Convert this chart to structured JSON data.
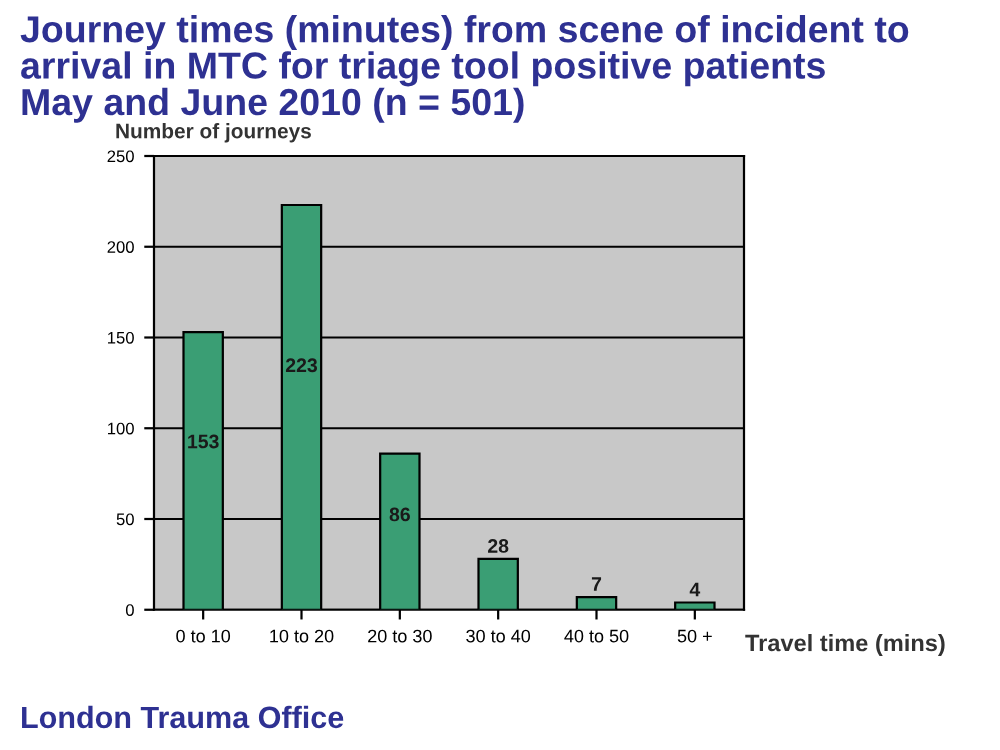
{
  "chart_data": {
    "type": "bar",
    "title": "Journey times (minutes) from scene of incident to\narrival in MTC for triage tool positive patients\nMay and June 2010 (n = 501)",
    "ylabel": "Number of journeys",
    "xlabel": "Travel time (mins)",
    "categories": [
      "0 to 10",
      "10 to 20",
      "20 to 30",
      "30 to 40",
      "40 to 50",
      "50 +"
    ],
    "values": [
      153,
      223,
      86,
      28,
      7,
      4
    ],
    "color": "#3a9e74",
    "ylim": [
      0,
      250
    ],
    "yticks": [
      0,
      50,
      100,
      150,
      200,
      250
    ],
    "grid": "y",
    "data_labels": true,
    "annotations": [
      "London Trauma Office"
    ]
  }
}
